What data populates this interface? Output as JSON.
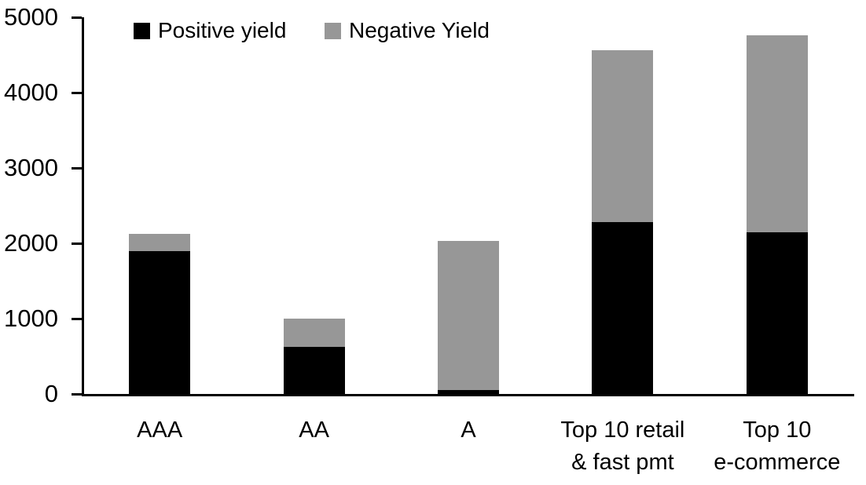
{
  "chart_data": {
    "type": "bar",
    "stacked": true,
    "title": "",
    "xlabel": "",
    "ylabel": "",
    "categories": [
      "AAA",
      "AA",
      "A",
      "Top 10 retail\n& fast pmt",
      "Top 10\ne-commerce"
    ],
    "series": [
      {
        "name": "Positive yield",
        "color": "#000000",
        "values": [
          1900,
          620,
          50,
          2280,
          2150
        ]
      },
      {
        "name": "Negative Yield",
        "color": "#979797",
        "values": [
          220,
          380,
          1980,
          2280,
          2610
        ]
      }
    ],
    "ylim": [
      0,
      5000
    ],
    "yticks": [
      0,
      1000,
      2000,
      3000,
      4000,
      5000
    ],
    "legend_position": "top",
    "grid": false,
    "axis_color": "#000000",
    "background": "#ffffff"
  }
}
